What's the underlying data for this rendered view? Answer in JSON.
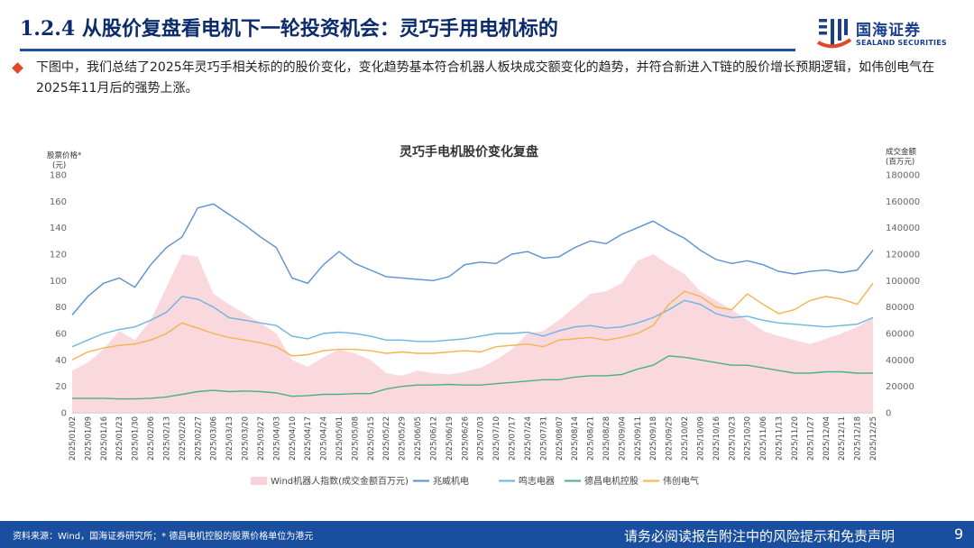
{
  "slide": {
    "title": "1.2.4 从股价复盘看电机下一轮投资机会：灵巧手用电机标的",
    "bullet": "下图中，我们总结了2025年灵巧手相关标的的股价变化，变化趋势基本符合机器人板块成交额变化的趋势，并符合新进入T链的股价增长预期逻辑，如伟创电气在2025年11月后的强势上涨。"
  },
  "logo": {
    "cn": "国海证券",
    "en": "SEALAND SECURITIES"
  },
  "footer": {
    "source": "资料来源：Wind，国海证券研究所；* 德昌电机控股的股票价格单位为港元",
    "disclaimer": "请务必阅读报告附注中的风险提示和免责声明",
    "page": "9"
  },
  "colors": {
    "title": "#0b2b6b",
    "brand": "#1a4f9f",
    "bullet": "#e2472a",
    "area": "#f8d2d8",
    "zhaowei": "#5b8fd0",
    "mingzhi": "#6fb3e0",
    "dechang": "#4caf8b",
    "weichuang": "#f3b44c"
  },
  "chart_data": {
    "type": "line",
    "title": "灵巧手电机股价变化复盘",
    "ylabel_left": "股票价格*\n(元)",
    "ylabel_right": "成交金额\n(百万元)",
    "ylim_left": [
      0,
      180
    ],
    "ylim_right": [
      0,
      180000
    ],
    "yticks_left": [
      "0",
      "20",
      "40",
      "60",
      "80",
      "100",
      "120",
      "140",
      "160",
      "180"
    ],
    "yticks_right": [
      "0",
      "20000",
      "40000",
      "60000",
      "80000",
      "100000",
      "120000",
      "140000",
      "160000",
      "180000"
    ],
    "x": [
      "2025/01/02",
      "2025/01/09",
      "2025/01/16",
      "2025/01/23",
      "2025/01/30",
      "2025/02/06",
      "2025/02/13",
      "2025/02/20",
      "2025/02/27",
      "2025/03/06",
      "2025/03/13",
      "2025/03/20",
      "2025/03/27",
      "2025/04/03",
      "2025/04/10",
      "2025/04/17",
      "2025/04/24",
      "2025/05/01",
      "2025/05/08",
      "2025/05/15",
      "2025/05/22",
      "2025/05/29",
      "2025/06/05",
      "2025/06/12",
      "2025/06/19",
      "2025/06/26",
      "2025/07/03",
      "2025/07/10",
      "2025/07/17",
      "2025/07/24",
      "2025/07/31",
      "2025/08/07",
      "2025/08/14",
      "2025/08/21",
      "2025/08/28",
      "2025/09/04",
      "2025/09/11",
      "2025/09/18",
      "2025/09/25",
      "2025/10/02",
      "2025/10/09",
      "2025/10/16",
      "2025/10/23",
      "2025/10/30",
      "2025/11/06",
      "2025/11/13",
      "2025/11/20",
      "2025/11/27",
      "2025/12/04",
      "2025/12/11",
      "2025/12/18",
      "2025/12/25"
    ],
    "series": [
      {
        "name": "Wind机器人指数(成交金额百万元)",
        "kind": "area",
        "axis": "right",
        "color": "#f8d2d8",
        "values": [
          32000,
          38000,
          48000,
          62000,
          55000,
          70000,
          95000,
          120000,
          118000,
          90000,
          82000,
          75000,
          68000,
          60000,
          40000,
          35000,
          42000,
          48000,
          45000,
          40000,
          30000,
          28000,
          32000,
          30000,
          29000,
          31000,
          34000,
          40000,
          48000,
          60000,
          62000,
          70000,
          80000,
          90000,
          92000,
          98000,
          115000,
          120000,
          112000,
          105000,
          92000,
          85000,
          78000,
          70000,
          62000,
          58000,
          55000,
          52000,
          56000,
          60000,
          65000,
          72000
        ]
      },
      {
        "name": "兆威机电",
        "axis": "left",
        "color": "#5b8fd0",
        "values": [
          74,
          88,
          98,
          102,
          95,
          112,
          125,
          133,
          155,
          158,
          150,
          142,
          133,
          125,
          102,
          98,
          112,
          122,
          113,
          108,
          103,
          102,
          101,
          100,
          103,
          112,
          114,
          113,
          120,
          122,
          117,
          118,
          125,
          130,
          128,
          135,
          140,
          145,
          138,
          132,
          123,
          116,
          113,
          115,
          112,
          107,
          105,
          107,
          108,
          106,
          108,
          123
        ]
      },
      {
        "name": "鸣志电器",
        "axis": "left",
        "color": "#6fb3e0",
        "values": [
          50,
          55,
          60,
          63,
          65,
          70,
          76,
          88,
          86,
          80,
          72,
          70,
          68,
          66,
          58,
          56,
          60,
          61,
          60,
          58,
          55,
          55,
          54,
          54,
          55,
          56,
          58,
          60,
          60,
          61,
          58,
          62,
          65,
          66,
          64,
          65,
          68,
          72,
          78,
          85,
          82,
          75,
          72,
          73,
          70,
          68,
          67,
          66,
          65,
          66,
          67,
          72
        ]
      },
      {
        "name": "德昌电机控股",
        "axis": "left",
        "color": "#4caf8b",
        "values": [
          11,
          11,
          11,
          10.5,
          10.5,
          11,
          12,
          14,
          16,
          17,
          16,
          16.5,
          16,
          15,
          12.5,
          13,
          14,
          14,
          14.5,
          14.5,
          18,
          20,
          21,
          21,
          21.5,
          21,
          21,
          22,
          23,
          24,
          25,
          25,
          27,
          28,
          28,
          29,
          33,
          36,
          43,
          42,
          40,
          38,
          36,
          36,
          34,
          32,
          30,
          30,
          31,
          31,
          30,
          30
        ]
      },
      {
        "name": "伟创电气",
        "axis": "left",
        "color": "#f3b44c",
        "values": [
          40,
          46,
          49,
          51,
          52,
          55,
          60,
          68,
          64,
          60,
          57,
          55,
          53,
          50,
          43,
          44,
          47,
          48,
          48,
          47,
          45,
          46,
          45,
          45,
          46,
          47,
          46,
          50,
          51,
          52,
          50,
          55,
          56,
          57,
          55,
          57,
          60,
          66,
          82,
          92,
          88,
          80,
          78,
          90,
          82,
          75,
          78,
          85,
          88,
          86,
          82,
          98
        ]
      }
    ],
    "legend_position": "bottom",
    "grid": false
  }
}
